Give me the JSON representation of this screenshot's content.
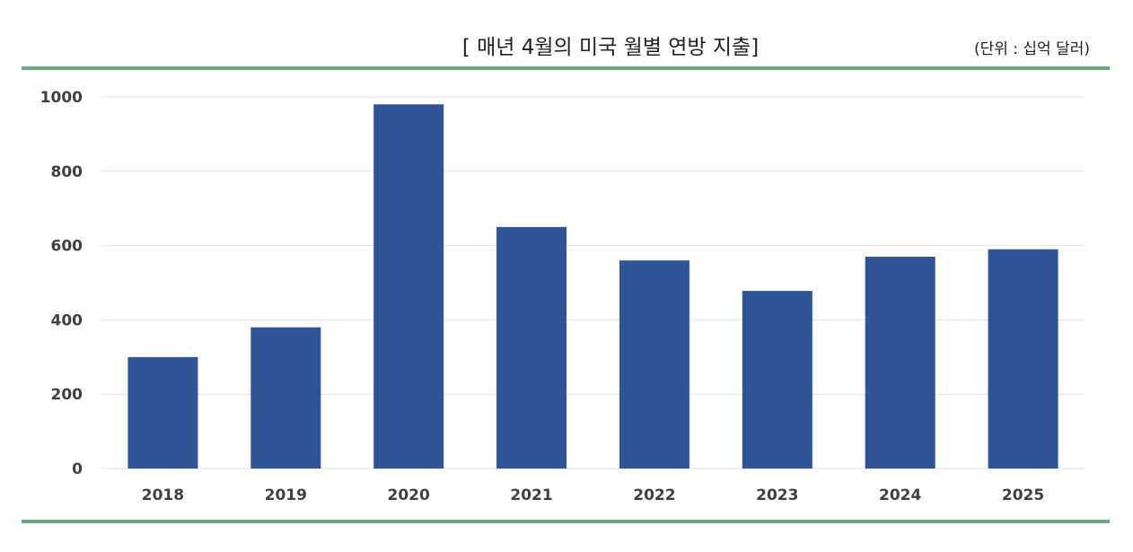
{
  "header": {
    "title": "[ 매년 4월의 미국 월별 연방 지출]",
    "unit": "(단위 : 십억 달러)"
  },
  "colors": {
    "bar": "#2F5597",
    "rule": "#6AAA7E",
    "grid": "#E3E3E3"
  },
  "chart_data": {
    "type": "bar",
    "title": "[ 매년 4월의 미국 월별 연방 지출]",
    "unit_label": "(단위 : 십억 달러)",
    "categories": [
      "2018",
      "2019",
      "2020",
      "2021",
      "2022",
      "2023",
      "2024",
      "2025"
    ],
    "values": [
      300,
      380,
      980,
      650,
      560,
      478,
      570,
      590
    ],
    "ylim": [
      0,
      1000
    ],
    "yticks": [
      0,
      200,
      400,
      600,
      800,
      1000
    ],
    "grid": true,
    "legend": "none"
  }
}
